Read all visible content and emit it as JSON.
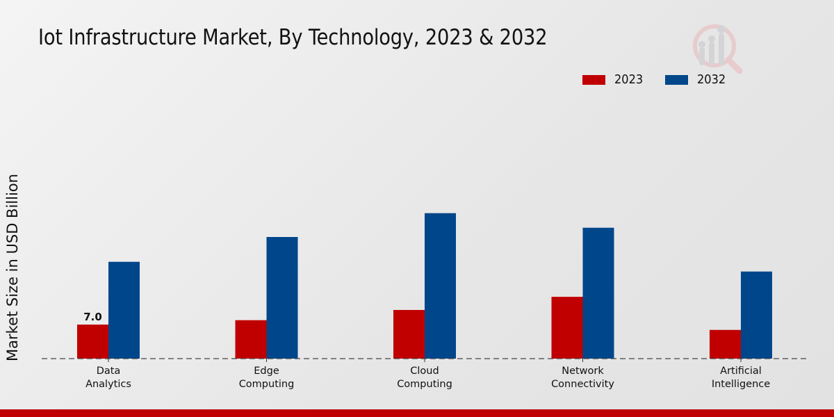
{
  "chart_data": {
    "type": "bar",
    "title": "Iot Infrastructure Market, By Technology, 2023 & 2032",
    "xlabel": "",
    "ylabel": "Market Size in USD Billion",
    "categories": [
      [
        "Data",
        "Analytics"
      ],
      [
        "Edge",
        "Computing"
      ],
      [
        "Cloud",
        "Computing"
      ],
      [
        "Network",
        "Connectivity"
      ],
      [
        "Artificial",
        "Intelligence"
      ]
    ],
    "series": [
      {
        "name": "2023",
        "color": "#c00000",
        "values": [
          7.0,
          7.9,
          10.0,
          12.7,
          5.9
        ]
      },
      {
        "name": "2032",
        "color": "#00468b",
        "values": [
          19.9,
          25.0,
          29.9,
          26.9,
          17.9
        ]
      }
    ],
    "data_labels": [
      {
        "series": 0,
        "index": 0,
        "text": "7.0"
      }
    ],
    "ylim": [
      0,
      35
    ],
    "grid": false,
    "baseline": "dashed",
    "legend_position": "top-right"
  },
  "watermark": {
    "icon": "magnifier-chart-logo-icon"
  }
}
